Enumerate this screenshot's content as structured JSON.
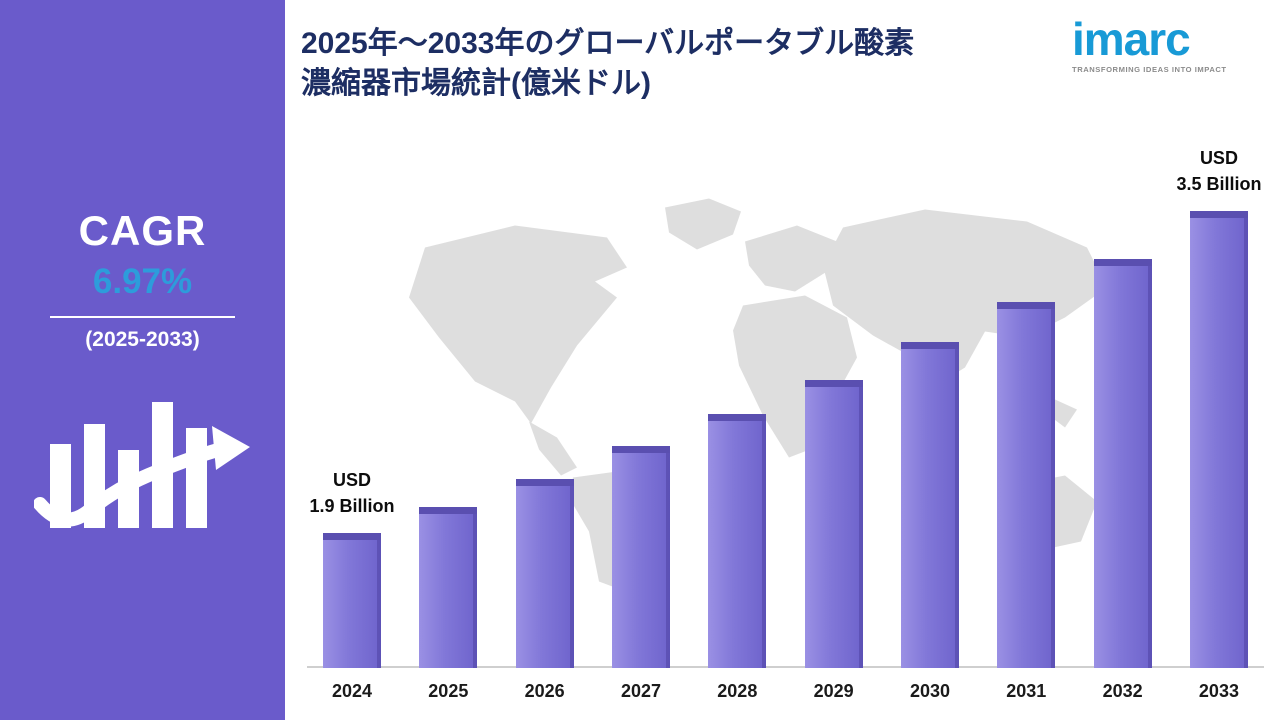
{
  "colors": {
    "sidebar_purple": "#6A5BCB",
    "bar_purple": "#8177D8",
    "bar_top_purple": "#5A4FB0",
    "accent_blue": "#2D9CDB",
    "title_navy": "#1D2E63",
    "logo_blue": "#189AD6",
    "map_gray": "#DBDBDB"
  },
  "sidebar": {
    "cagr_label": "CAGR",
    "cagr_value": "6.97%",
    "period": "(2025-2033)"
  },
  "header": {
    "title_line1": "2025年～2033年のグローバルポータブル酸素",
    "title_line2": "濃縮器市場統計(億米ドル)",
    "logo_text": "imarc",
    "logo_tagline": "TRANSFORMING IDEAS INTO IMPACT"
  },
  "chart_data": {
    "type": "bar",
    "title": "2025年～2033年のグローバルポータブル酸素濃縮器市場統計(億米ドル)",
    "unit": "USD Billion",
    "categories": [
      "2024",
      "2025",
      "2026",
      "2027",
      "2028",
      "2029",
      "2030",
      "2031",
      "2032",
      "2033"
    ],
    "values": [
      1.9,
      2.03,
      2.17,
      2.33,
      2.49,
      2.66,
      2.85,
      3.05,
      3.26,
      3.5
    ],
    "ylim": [
      0,
      4
    ],
    "grid": false,
    "legend": "none",
    "annotations": [
      {
        "index": 0,
        "lines": [
          "USD",
          "1.9 Billion"
        ]
      },
      {
        "index": 9,
        "lines": [
          "USD",
          "3.5 Billion"
        ]
      }
    ]
  }
}
